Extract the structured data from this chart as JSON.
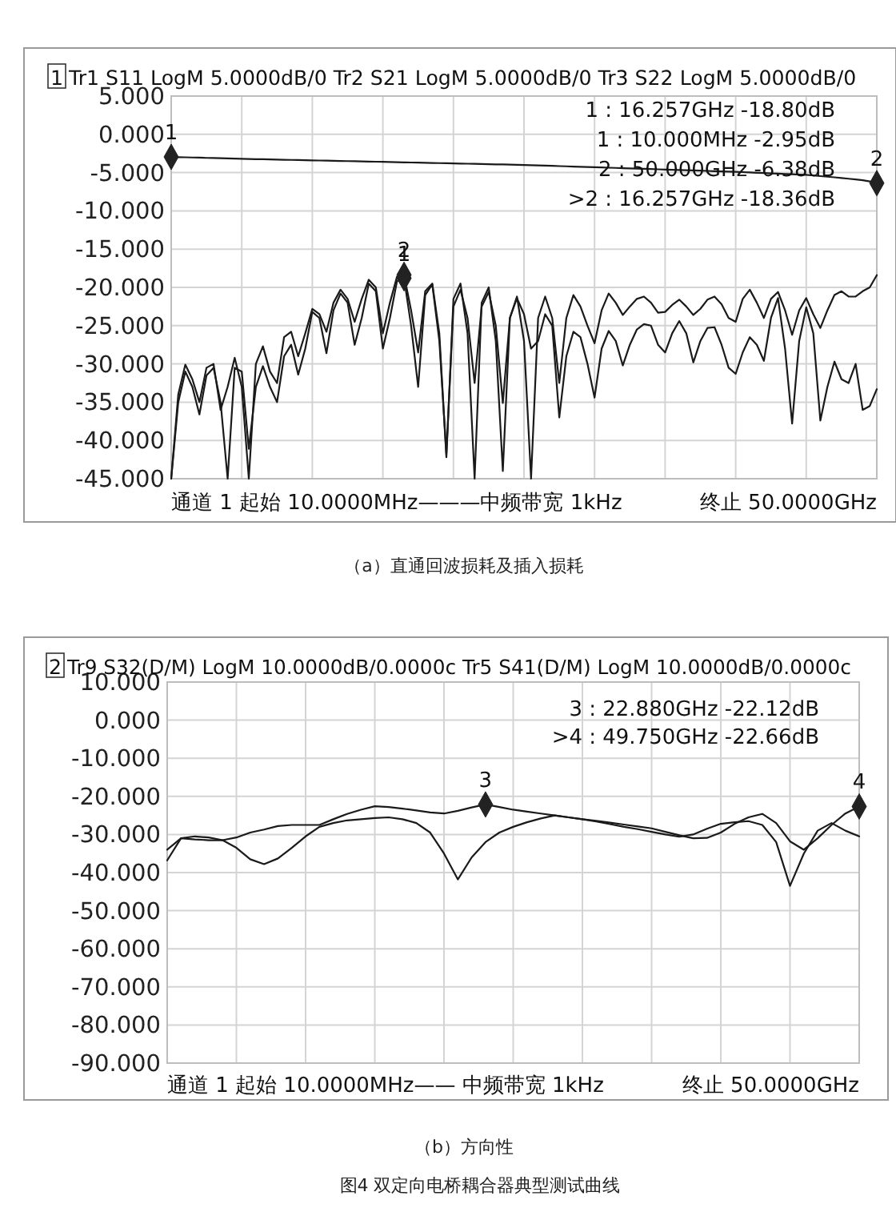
{
  "chart_data": [
    {
      "type": "line",
      "title": "Tr1 S11 LogM 5.0000dB/0  Tr2 S21 LogM 5.0000dB/0  Tr3 S22 LogM 5.0000dB/0",
      "xlabel": "通道 1 起始 10.0000MHz———中频带宽 1kHz",
      "subtitle": "（a）直通回波损耗及插入损耗",
      "categories": [
        null,
        null,
        null,
        null,
        null,
        null,
        null,
        null,
        null,
        null,
        null,
        null,
        null,
        null,
        null,
        null,
        null,
        null,
        null,
        null,
        null,
        null,
        null,
        null,
        null,
        null,
        null,
        null,
        null,
        null,
        null,
        null,
        null,
        null,
        null,
        null,
        null,
        null,
        null,
        null,
        null,
        null,
        null,
        null,
        null,
        null,
        null,
        null,
        null,
        null,
        null,
        null,
        null,
        null,
        null,
        null,
        null,
        null,
        null,
        null,
        null,
        null,
        null,
        null,
        null,
        null,
        null,
        null,
        null,
        null,
        null,
        null,
        null,
        null,
        null,
        null,
        null,
        null,
        null,
        null,
        null,
        null,
        null,
        null,
        null,
        null,
        null,
        null,
        null,
        null,
        null,
        null,
        null,
        null,
        null,
        null,
        null,
        null,
        null,
        null,
        null
      ],
      "ylim": [
        -45,
        5
      ],
      "yticks": [
        {
          "value": 5,
          "label": "5.000"
        },
        {
          "value": 0,
          "label": "0.000"
        },
        {
          "value": -5,
          "label": "-5.000"
        },
        {
          "value": -10,
          "label": "-10.000"
        },
        {
          "value": -15,
          "label": "-15.000"
        },
        {
          "value": -20,
          "label": "-20.000"
        },
        {
          "value": -25,
          "label": "-25.000"
        },
        {
          "value": -30,
          "label": "-30.000"
        },
        {
          "value": -35,
          "label": "-35.000"
        },
        {
          "value": -40,
          "label": "-40.000"
        },
        {
          "value": -45,
          "label": "-45.000"
        }
      ],
      "grid": true,
      "series": [
        {
          "color": "#1a1a1a",
          "values": [
            -2.95,
            -2.98,
            -3.0,
            -3.03,
            -3.05,
            -3.08,
            -3.1,
            -3.13,
            -3.15,
            -3.18,
            -3.2,
            -3.22,
            -3.24,
            -3.26,
            -3.28,
            -3.3,
            -3.32,
            -3.34,
            -3.36,
            -3.38,
            -3.4,
            -3.42,
            -3.44,
            -3.46,
            -3.48,
            -3.5,
            -3.52,
            -3.54,
            -3.56,
            -3.58,
            -3.6,
            -3.62,
            -3.64,
            -3.66,
            -3.68,
            -3.7,
            -3.72,
            -3.74,
            -3.76,
            -3.78,
            -3.8,
            -3.82,
            -3.84,
            -3.86,
            -3.88,
            -3.9,
            -3.92,
            -3.94,
            -3.96,
            -3.98,
            -4.0,
            -4.03,
            -4.06,
            -4.09,
            -4.12,
            -4.15,
            -4.18,
            -4.21,
            -4.24,
            -4.27,
            -4.3,
            -4.33,
            -4.36,
            -4.39,
            -4.42,
            -4.45,
            -4.48,
            -4.51,
            -4.54,
            -4.57,
            -4.6,
            -4.63,
            -4.66,
            -4.69,
            -4.72,
            -4.75,
            -4.78,
            -4.81,
            -4.84,
            -4.87,
            -4.9,
            -4.94,
            -4.98,
            -5.02,
            -5.06,
            -5.1,
            -5.14,
            -5.18,
            -5.22,
            -5.26,
            -5.3,
            -5.38,
            -5.46,
            -5.54,
            -5.62,
            -5.7,
            -5.8,
            -5.9,
            -6.0,
            -6.15,
            -6.38
          ]
        },
        {
          "color": "#1a1a1a",
          "values": [
            -45,
            -34,
            -30.1,
            -32,
            -35,
            -30.5,
            -30,
            -36,
            -33,
            -29.2,
            -33,
            -45,
            -30,
            -27.7,
            -31,
            -32.5,
            -26.5,
            -25.8,
            -29,
            -26,
            -22.8,
            -23.5,
            -25.8,
            -22,
            -20.3,
            -21.5,
            -24.5,
            -21.5,
            -19,
            -20,
            -26,
            -22,
            -18.6,
            -18.36,
            -23,
            -28.5,
            -20.5,
            -19.5,
            -26,
            -42.2,
            -21.5,
            -19.5,
            -26,
            -45,
            -22,
            -20,
            -27,
            -44,
            -24,
            -21.2,
            -27,
            -45,
            -24,
            -21.2,
            -24,
            -32.5,
            -24,
            -21,
            -22.5,
            -25,
            -27.3,
            -23,
            -20.8,
            -22,
            -23.6,
            -22.5,
            -21.5,
            -21.2,
            -22,
            -23.3,
            -23.2,
            -22.3,
            -21.6,
            -22.5,
            -23.6,
            -22.8,
            -21.6,
            -21.2,
            -22.2,
            -24,
            -24.5,
            -21.5,
            -20.3,
            -22,
            -24,
            -21.5,
            -20.6,
            -23,
            -26.2,
            -23,
            -21.4,
            -23.5,
            -25.3,
            -23,
            -21,
            -20.5,
            -21.2,
            -21.2,
            -20.5,
            -20,
            -18.4
          ]
        },
        {
          "color": "#1a1a1a",
          "values": [
            -45,
            -35,
            -31,
            -33,
            -36.6,
            -31.5,
            -30.5,
            -35,
            -45,
            -30.5,
            -31,
            -41.1,
            -33,
            -30.3,
            -33,
            -35,
            -29,
            -27.5,
            -31.4,
            -28,
            -23.2,
            -24,
            -28.6,
            -23,
            -20.8,
            -22,
            -27.5,
            -24,
            -19.5,
            -20.5,
            -28,
            -24,
            -19.2,
            -18.8,
            -25,
            -33,
            -21,
            -19.6,
            -27,
            -41.8,
            -22.5,
            -20.3,
            -24,
            -32.5,
            -22.5,
            -20.6,
            -25,
            -35.1,
            -24,
            -21.4,
            -23.5,
            -28,
            -27,
            -23.5,
            -25,
            -37,
            -29,
            -25.8,
            -26.5,
            -30,
            -34.4,
            -28,
            -25.7,
            -27,
            -30.2,
            -27.5,
            -25.5,
            -24.8,
            -25,
            -27.5,
            -28.5,
            -26,
            -24.4,
            -26,
            -29.8,
            -27,
            -25.3,
            -25.2,
            -27.5,
            -30.5,
            -31.3,
            -28.5,
            -26.5,
            -27.5,
            -29.6,
            -24,
            -21.4,
            -28,
            -37.8,
            -27,
            -22.6,
            -26,
            -37.4,
            -33,
            -29.7,
            -32,
            -32.5,
            -30,
            -36,
            -35.5,
            -33.3
          ]
        }
      ],
      "annotations": [
        "1",
        "1 : 16.257GHz  -18.80dB",
        "1 : 10.000MHz  -2.95dB",
        "2 : 50.000GHz  -6.38dB",
        ">2 : 16.257GHz  -18.36dB",
        {
          "text": "1",
          "y": -2.95
        },
        {
          "text": "2",
          "y": -6.38
        },
        {
          "text": "1",
          "y": -18.8
        },
        {
          "text": "2",
          "y": -18.36
        },
        "终止 50.0000GHz"
      ]
    },
    {
      "type": "line",
      "title": "Tr9 S32(D/M) LogM 10.0000dB/0.0000c  Tr5 S41(D/M) LogM 10.0000dB/0.0000c",
      "xlabel": "通道 1 起始 10.0000MHz——    中频带宽 1kHz",
      "subtitle": "（b）方向性",
      "categories": [
        null,
        null,
        null,
        null,
        null,
        null,
        null,
        null,
        null,
        null,
        null,
        null,
        null,
        null,
        null,
        null,
        null,
        null,
        null,
        null,
        null,
        null,
        null,
        null,
        null,
        null,
        null,
        null,
        null,
        null,
        null,
        null,
        null,
        null,
        null,
        null,
        null,
        null,
        null,
        null,
        null,
        null,
        null,
        null,
        null,
        null,
        null,
        null,
        null,
        null,
        null
      ],
      "ylim": [
        -90,
        10
      ],
      "yticks": [
        {
          "value": 10,
          "label": "10.000"
        },
        {
          "value": 0,
          "label": "0.000"
        },
        {
          "value": -10,
          "label": "-10.000"
        },
        {
          "value": -20,
          "label": "-20.000"
        },
        {
          "value": -30,
          "label": "-30.000"
        },
        {
          "value": -40,
          "label": "-40.000"
        },
        {
          "value": -50,
          "label": "-50.000"
        },
        {
          "value": -60,
          "label": "-60.000"
        },
        {
          "value": -70,
          "label": "-70.000"
        },
        {
          "value": -80,
          "label": "-80.000"
        },
        {
          "value": -90,
          "label": "-90.000"
        }
      ],
      "grid": true,
      "series": [
        {
          "color": "#1a1a1a",
          "values": [
            -36.8,
            -31,
            -30.5,
            -30.8,
            -31.5,
            -33.5,
            -36.5,
            -37.8,
            -36.3,
            -33.5,
            -30.5,
            -28,
            -27,
            -26.3,
            -26,
            -25.7,
            -25.5,
            -26,
            -27,
            -29.5,
            -35,
            -41.8,
            -36,
            -32,
            -29.5,
            -28,
            -26.8,
            -25.8,
            -25,
            -25.5,
            -26,
            -26.6,
            -27.3,
            -28,
            -28.6,
            -29.3,
            -30,
            -30.6,
            -30,
            -28.5,
            -27.2,
            -26.8,
            -26.5,
            -27.5,
            -32,
            -43.5,
            -35,
            -29,
            -27,
            -29,
            -30.5
          ]
        },
        {
          "color": "#1a1a1a",
          "values": [
            -34,
            -31,
            -31.3,
            -31.5,
            -31.5,
            -30.8,
            -29.5,
            -28.7,
            -27.8,
            -27.5,
            -27.5,
            -27.5,
            -26,
            -24.6,
            -23.5,
            -22.6,
            -22.8,
            -23.2,
            -23.7,
            -24.2,
            -24.5,
            -23.8,
            -22.9,
            -22.12,
            -22.8,
            -23.5,
            -24,
            -24.5,
            -25,
            -25.5,
            -26,
            -26.4,
            -26.9,
            -27.4,
            -27.9,
            -28.4,
            -29.3,
            -30.2,
            -31,
            -30.9,
            -29.5,
            -27.2,
            -25.5,
            -24.6,
            -27,
            -31.8,
            -34,
            -31,
            -27.5,
            -24.5,
            -22.66
          ]
        }
      ],
      "annotations": [
        "2",
        "3 : 22.880GHz  -22.12dB",
        ">4 : 49.750GHz  -22.66dB",
        {
          "text": "3",
          "y": -22.12
        },
        {
          "text": "4",
          "y": -22.66
        },
        "终止 50.0000GHz",
        "图4 双定向电桥耦合器典型测试曲线"
      ]
    }
  ]
}
